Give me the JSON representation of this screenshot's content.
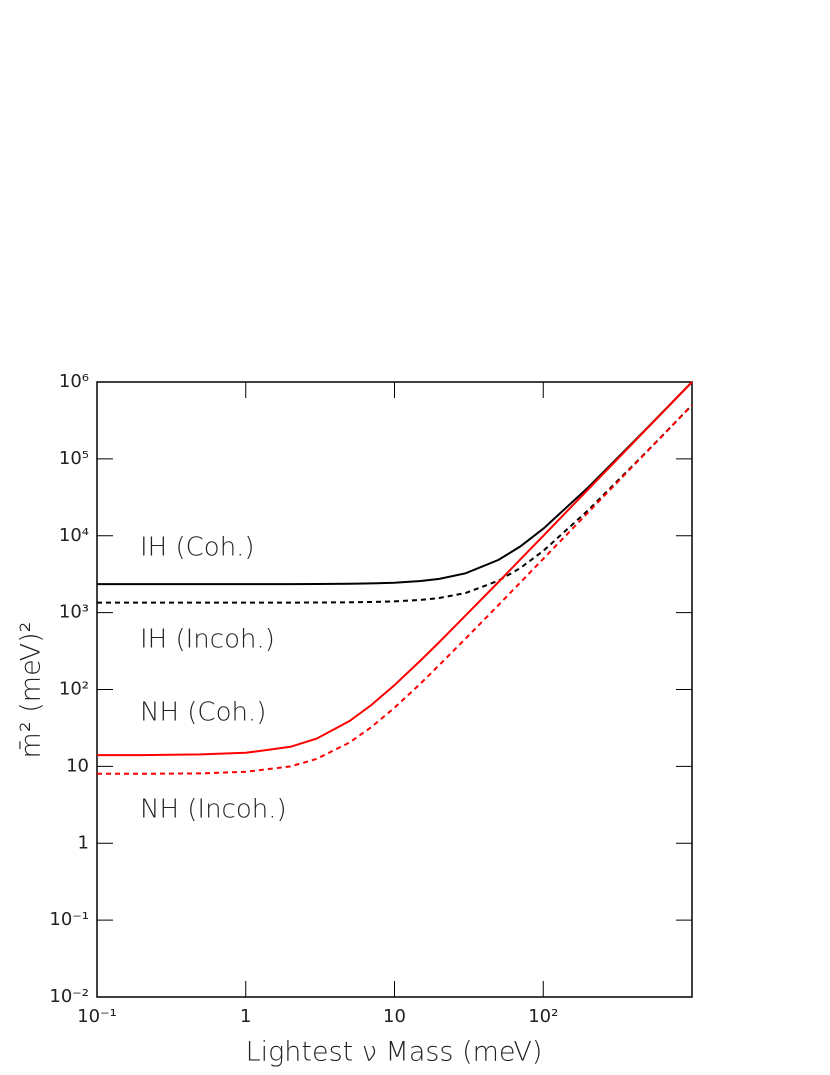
{
  "chart_data": {
    "type": "line",
    "x_label": "Lightest ν Mass (meV)",
    "y_label": "m̄²  (meV)²",
    "log_x": true,
    "log_y": true,
    "xlim": [
      0.1,
      1000
    ],
    "ylim": [
      0.01,
      1000000
    ],
    "xticks": [
      {
        "value": 0.1,
        "label": "10⁻¹"
      },
      1,
      10,
      {
        "value": 100,
        "label": "10²"
      }
    ],
    "yticks": [
      {
        "value": 0.01,
        "label": "10⁻²"
      },
      {
        "value": 0.1,
        "label": "10⁻¹"
      },
      1,
      10,
      {
        "value": 100,
        "label": "10²"
      },
      {
        "value": 1000,
        "label": "10³"
      },
      {
        "value": 10000,
        "label": "10⁴"
      },
      {
        "value": 100000,
        "label": "10⁵"
      },
      {
        "value": 1000000,
        "label": "10⁶"
      }
    ],
    "x": [
      0.1,
      0.2,
      0.5,
      1,
      2,
      3,
      5,
      7,
      10,
      15,
      20,
      30,
      50,
      70,
      100,
      200,
      500,
      1000
    ],
    "series": [
      {
        "name": "IH (Coh.)",
        "color": "#000000",
        "dashed": false,
        "values": [
          2350,
          2350,
          2350,
          2350,
          2350,
          2360,
          2380,
          2400,
          2450,
          2580,
          2750,
          3250,
          4850,
          7250,
          12350,
          42350,
          252000,
          1000000
        ]
      },
      {
        "name": "IH (Incoh.)",
        "color": "#000000",
        "dashed": true,
        "values": [
          1350,
          1350,
          1350,
          1350,
          1352,
          1355,
          1362,
          1375,
          1400,
          1462,
          1550,
          1800,
          2600,
          3800,
          6350,
          21350,
          126000,
          500000
        ]
      },
      {
        "name": "NH (Coh.)",
        "color": "#ff0000",
        "dashed": false,
        "values": [
          14,
          14,
          14.3,
          15,
          18,
          23,
          39,
          63,
          114,
          239,
          414,
          914,
          2500,
          4900,
          10000,
          40000,
          250000,
          1000000
        ]
      },
      {
        "name": "NH (Incoh.)",
        "color": "#ff0000",
        "dashed": true,
        "values": [
          8,
          8,
          8.1,
          8.5,
          10,
          12.5,
          20.5,
          32.5,
          58,
          120,
          208,
          458,
          1258,
          2458,
          5008,
          20008,
          125000,
          500000
        ]
      }
    ],
    "annotation_colors": [
      "#333333",
      "#333333",
      "#ff3333",
      "#ff3333"
    ]
  }
}
